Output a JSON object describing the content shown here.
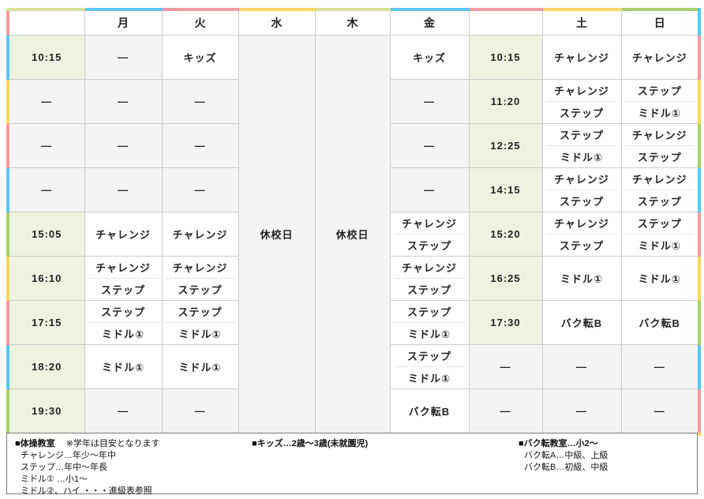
{
  "colors": {
    "pink": "#f29aa0",
    "blue": "#5fc5f0",
    "paleblue": "#a9dcf5",
    "yellow": "#f8d564",
    "green": "#a9cf6d",
    "olive": "#d8e09a",
    "cell_green": "#eef3e0",
    "cell_gray": "#f4f4f5",
    "cell_white": "#ffffff",
    "grid_line": "#cccccc",
    "text": "#222222",
    "legend_border": "#7a7a7a"
  },
  "table": {
    "headers": [
      "",
      "月",
      "火",
      "水",
      "木",
      "金",
      "",
      "土",
      "日"
    ],
    "closed_label": "休校日",
    "dash": "—",
    "border_top": [
      "olive",
      "blue",
      "pink",
      "yellow",
      "olive",
      "blue",
      "pink",
      "yellow",
      "green"
    ],
    "border_left": [
      "pink",
      "blue",
      "yellow",
      "pink",
      "blue",
      "green",
      "yellow",
      "pink",
      "blue",
      "green"
    ],
    "border_right": [
      "blue",
      "pink",
      "yellow",
      "green",
      "blue",
      "pink",
      "yellow",
      "green",
      "blue",
      "pink"
    ],
    "border_bottom": [
      "yellow",
      "pink",
      "paleblue",
      "green",
      "paleblue",
      "pink",
      "blue",
      "green",
      "yellow"
    ],
    "rows": [
      {
        "time1": "10:15",
        "mon": [
          "—"
        ],
        "tue": [
          "キッズ"
        ],
        "fri": [
          "キッズ"
        ],
        "time2": "10:15",
        "sat": [
          "チャレンジ"
        ],
        "sun": [
          "チャレンジ"
        ]
      },
      {
        "time1": "—",
        "mon": [
          "—"
        ],
        "tue": [
          "—"
        ],
        "fri": [
          "—"
        ],
        "time2": "11:20",
        "sat": [
          "チャレンジ",
          "ステップ"
        ],
        "sun": [
          "ステップ",
          "ミドル①"
        ]
      },
      {
        "time1": "—",
        "mon": [
          "—"
        ],
        "tue": [
          "—"
        ],
        "fri": [
          "—"
        ],
        "time2": "12:25",
        "sat": [
          "ステップ",
          "ミドル①"
        ],
        "sun": [
          "チャレンジ",
          "ステップ"
        ]
      },
      {
        "time1": "—",
        "mon": [
          "—"
        ],
        "tue": [
          "—"
        ],
        "fri": [
          "—"
        ],
        "time2": "14:15",
        "sat": [
          "チャレンジ",
          "ステップ"
        ],
        "sun": [
          "チャレンジ",
          "ステップ"
        ]
      },
      {
        "time1": "15:05",
        "mon": [
          "チャレンジ"
        ],
        "tue": [
          "チャレンジ"
        ],
        "fri": [
          "チャレンジ",
          "ステップ"
        ],
        "time2": "15:20",
        "sat": [
          "チャレンジ",
          "ステップ"
        ],
        "sun": [
          "ステップ",
          "ミドル①"
        ]
      },
      {
        "time1": "16:10",
        "mon": [
          "チャレンジ",
          "ステップ"
        ],
        "tue": [
          "チャレンジ",
          "ステップ"
        ],
        "fri": [
          "チャレンジ",
          "ステップ"
        ],
        "time2": "16:25",
        "sat": [
          "ミドル①"
        ],
        "sun": [
          "ミドル①"
        ]
      },
      {
        "time1": "17:15",
        "mon": [
          "ステップ",
          "ミドル①"
        ],
        "tue": [
          "ステップ",
          "ミドル①"
        ],
        "fri": [
          "ステップ",
          "ミドル①"
        ],
        "time2": "17:30",
        "sat": [
          "バク転B"
        ],
        "sun": [
          "バク転B"
        ]
      },
      {
        "time1": "18:20",
        "mon": [
          "ミドル①"
        ],
        "tue": [
          "ミドル①"
        ],
        "fri": [
          "ステップ",
          "ミドル①"
        ],
        "time2": "—",
        "sat": [
          "—"
        ],
        "sun": [
          "—"
        ]
      },
      {
        "time1": "19:30",
        "mon": [
          "—"
        ],
        "tue": [
          "—"
        ],
        "fri": [
          "バク転B"
        ],
        "time2": "—",
        "sat": [
          "—"
        ],
        "sun": [
          "—"
        ]
      }
    ]
  },
  "legend": {
    "taiso": {
      "title": "■体操教室",
      "note": "※学年は目安となります",
      "items": [
        "チャレンジ…年少〜年中",
        "ステップ…年中〜年長",
        "ミドル① …小1〜",
        "ミドル②、ハイ ・・・進級表参照"
      ]
    },
    "kids": {
      "title": "■キッズ…2歳〜3歳(未就園児)"
    },
    "bakuten": {
      "title": "■バク転教室…小2〜",
      "items": [
        "バク転A…中級、上級",
        "バク転B…初級、中級"
      ]
    }
  }
}
